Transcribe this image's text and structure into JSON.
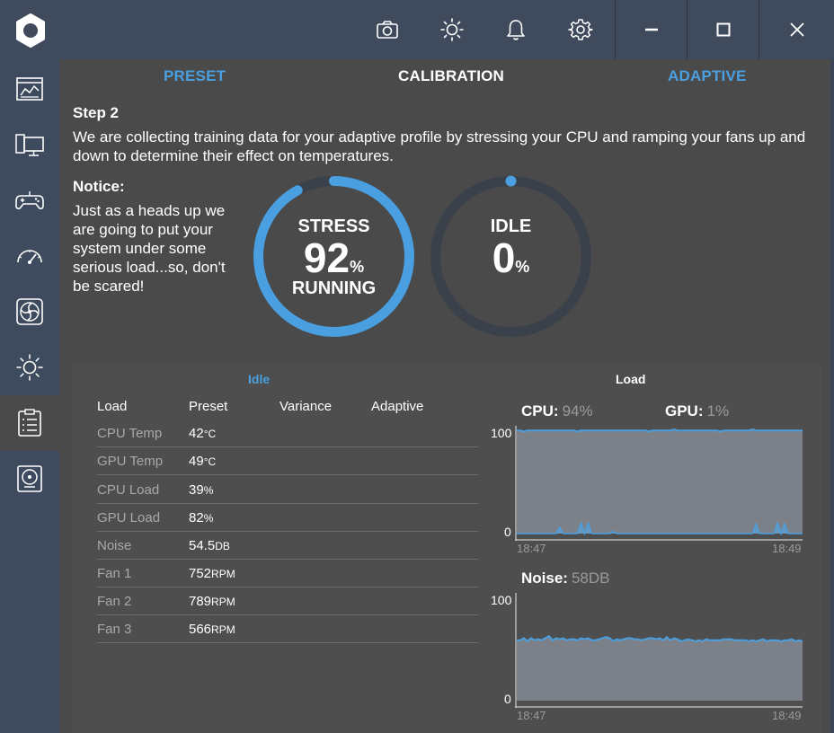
{
  "titlebar": {
    "icons": [
      "camera-icon",
      "brightness-icon",
      "bell-icon",
      "gear-icon"
    ],
    "controls": [
      "minimize-icon",
      "maximize-icon",
      "close-icon"
    ]
  },
  "sidebar": {
    "items": [
      {
        "name": "dashboard-icon"
      },
      {
        "name": "system-info-icon"
      },
      {
        "name": "gamepad-icon"
      },
      {
        "name": "speedometer-icon"
      },
      {
        "name": "fan-icon"
      },
      {
        "name": "lighting-icon"
      },
      {
        "name": "checklist-icon",
        "active": true
      },
      {
        "name": "storage-icon"
      }
    ]
  },
  "tabs": {
    "preset": "PRESET",
    "calibration": "CALIBRATION",
    "adaptive": "ADAPTIVE"
  },
  "step": {
    "title": "Step 2",
    "description": "We are collecting training data for your adaptive profile by stressing your CPU and ramping your fans up and down to determine their effect on temperatures."
  },
  "notice": {
    "title": "Notice:",
    "text": "Just as a heads up we are going to put your system under some serious load...so, don't be scared!"
  },
  "stress": {
    "label": "STRESS",
    "value": "92",
    "unit": "%",
    "status": "RUNNING",
    "progress": 0.92
  },
  "idle": {
    "label": "IDLE",
    "value": "0",
    "unit": "%",
    "progress": 0.0
  },
  "colors": {
    "accent": "#4a9fe0",
    "ring_track": "#3b414a",
    "chart_fill": "#7c8189"
  },
  "table": {
    "section_title": "Idle",
    "headers": [
      "Load",
      "Preset",
      "Variance",
      "Adaptive"
    ],
    "rows": [
      {
        "label": "CPU Temp",
        "value": "42",
        "unit": "°C"
      },
      {
        "label": "GPU Temp",
        "value": "49",
        "unit": "°C"
      },
      {
        "label": "CPU Load",
        "value": "39",
        "unit": "%"
      },
      {
        "label": "GPU Load",
        "value": "82",
        "unit": "%"
      },
      {
        "label": "Noise",
        "value": "54.5",
        "unit": "DB"
      },
      {
        "label": "Fan 1",
        "value": "752",
        "unit": "RPM"
      },
      {
        "label": "Fan 2",
        "value": "789",
        "unit": "RPM"
      },
      {
        "label": "Fan 3",
        "value": "566",
        "unit": "RPM"
      }
    ]
  },
  "load": {
    "section_title": "Load",
    "cpu_label": "CPU:",
    "cpu_value": "94%",
    "gpu_label": "GPU:",
    "gpu_value": "1%",
    "noise_label": "Noise:",
    "noise_value": "58DB"
  },
  "chart_data": [
    {
      "type": "area",
      "title": "CPU / GPU load",
      "x_start": "18:47",
      "x_end": "18:49",
      "ylim": [
        0,
        100
      ],
      "y_ticks": [
        "100",
        "0"
      ],
      "series": [
        {
          "name": "CPU",
          "values": [
            99,
            99,
            98,
            99,
            99,
            99,
            99,
            99,
            99,
            99,
            99,
            99,
            99,
            99,
            99,
            99,
            99,
            98,
            99,
            99,
            99,
            99,
            99,
            99,
            99,
            99,
            99,
            99,
            99,
            99,
            99,
            99,
            99,
            99,
            99,
            99,
            99,
            98,
            99,
            99,
            99,
            99,
            99,
            99,
            100,
            99,
            99,
            99,
            99,
            99,
            99,
            99,
            99,
            99,
            99,
            99,
            99,
            98,
            99,
            99,
            99,
            99,
            99,
            99,
            99,
            99,
            100,
            99,
            99,
            99,
            99,
            99,
            99,
            99,
            99,
            99,
            99,
            99,
            99,
            99,
            99
          ]
        },
        {
          "name": "GPU",
          "values": [
            0,
            0,
            0,
            0,
            0,
            0,
            0,
            0,
            0,
            0,
            0,
            0,
            6,
            0,
            0,
            0,
            0,
            0,
            10,
            0,
            10,
            0,
            0,
            0,
            0,
            0,
            0,
            2,
            0,
            0,
            0,
            0,
            0,
            0,
            0,
            0,
            0,
            0,
            0,
            0,
            0,
            0,
            0,
            0,
            0,
            0,
            0,
            0,
            0,
            0,
            0,
            0,
            0,
            0,
            0,
            0,
            0,
            0,
            0,
            0,
            0,
            0,
            0,
            0,
            0,
            0,
            0,
            9,
            0,
            0,
            0,
            0,
            0,
            10,
            0,
            9,
            0,
            0,
            0,
            0,
            0
          ]
        }
      ]
    },
    {
      "type": "area",
      "title": "Noise",
      "x_start": "18:47",
      "x_end": "18:49",
      "ylim": [
        0,
        100
      ],
      "y_ticks": [
        "100",
        "0"
      ],
      "series": [
        {
          "name": "Noise",
          "values": [
            58,
            58,
            60,
            57,
            60,
            58,
            59,
            58,
            60,
            62,
            58,
            60,
            59,
            60,
            58,
            59,
            59,
            58,
            60,
            59,
            60,
            58,
            58,
            59,
            60,
            61,
            60,
            57,
            59,
            58,
            59,
            60,
            60,
            59,
            59,
            58,
            59,
            60,
            60,
            59,
            60,
            58,
            61,
            58,
            60,
            59,
            57,
            58,
            59,
            58,
            57,
            58,
            57,
            59,
            58,
            58,
            58,
            58,
            59,
            59,
            59,
            58,
            58,
            58,
            58,
            57,
            58,
            57,
            58,
            59,
            57,
            58,
            58,
            58,
            57,
            58,
            58,
            59,
            57,
            58,
            57
          ]
        }
      ]
    }
  ]
}
